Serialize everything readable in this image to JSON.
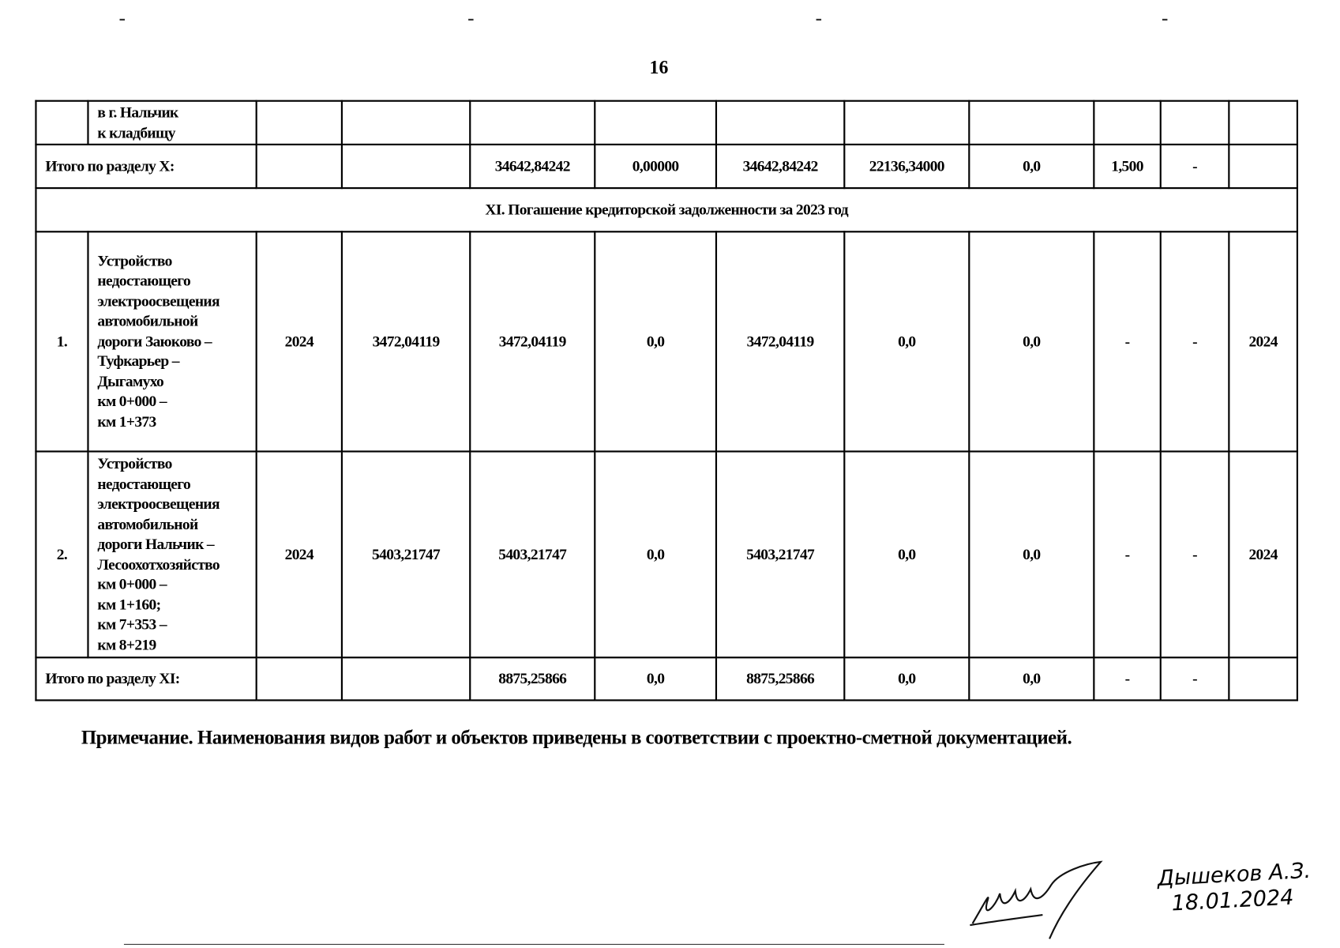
{
  "page_number": "16",
  "table": {
    "rows": [
      {
        "type": "item",
        "cells": [
          "",
          "в г. Нальчик\nк кладбищу",
          "",
          "",
          "",
          "",
          "",
          "",
          "",
          "",
          "",
          ""
        ]
      },
      {
        "type": "total",
        "label": "Итого по разделу X:",
        "cells": [
          "",
          "",
          "34642,84242",
          "0,00000",
          "34642,84242",
          "22136,34000",
          "0,0",
          "1,500",
          "-",
          ""
        ]
      },
      {
        "type": "section",
        "label": "XI. Погашение кредиторской задолженности за 2023 год"
      },
      {
        "type": "item",
        "cells": [
          "1.",
          "Устройство\nнедостающего\nэлектроосвещения\nавтомобильной\nдороги Заюково –\nТуфкарьер –\nДыгамухо\nкм 0+000 –\nкм 1+373",
          "2024",
          "3472,04119",
          "3472,04119",
          "0,0",
          "3472,04119",
          "0,0",
          "0,0",
          "-",
          "-",
          "2024"
        ]
      },
      {
        "type": "item",
        "cells": [
          "2.",
          "Устройство\nнедостающего\nэлектроосвещения\nавтомобильной\nдороги Нальчик –\nЛесоохотхозяйство\nкм 0+000 –\nкм 1+160;\nкм 7+353 –\nкм 8+219",
          "2024",
          "5403,21747",
          "5403,21747",
          "0,0",
          "5403,21747",
          "0,0",
          "0,0",
          "-",
          "-",
          "2024"
        ]
      },
      {
        "type": "total",
        "label": "Итого по разделу XI:",
        "cells": [
          "",
          "",
          "8875,25866",
          "0,0",
          "8875,25866",
          "0,0",
          "0,0",
          "-",
          "-",
          ""
        ]
      }
    ]
  },
  "note": "Примечание. Наименования видов работ и объектов приведены в соответствии с проектно-сметной документацией.",
  "signature": {
    "name": "Дышеков А.З.",
    "date": "18.01.2024"
  }
}
